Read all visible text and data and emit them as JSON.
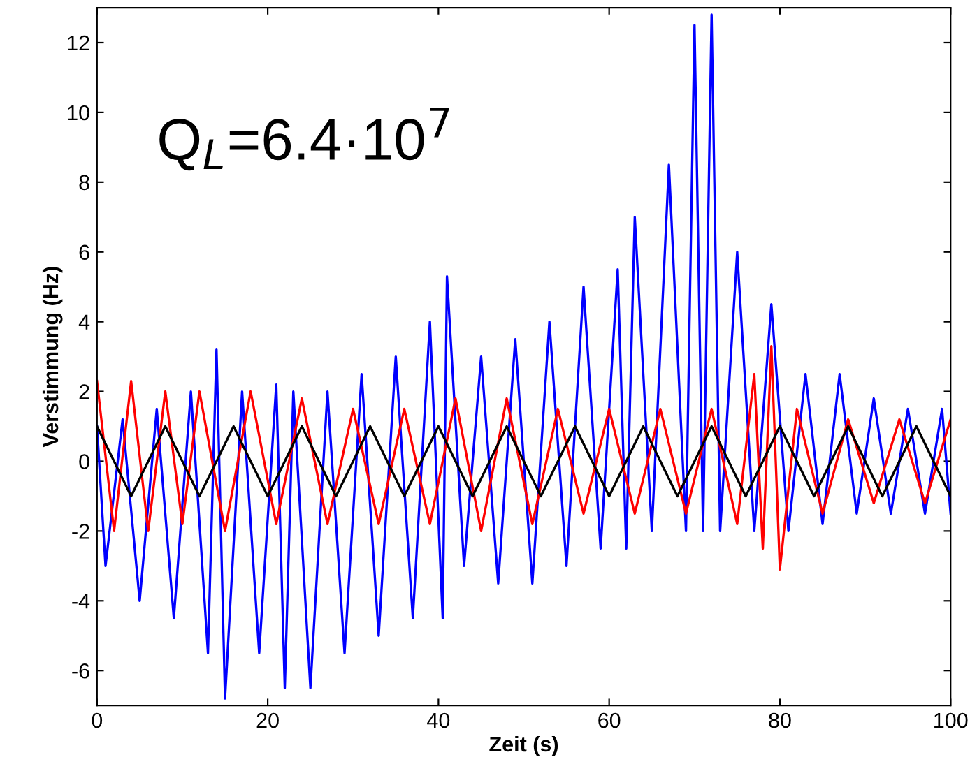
{
  "chart_data": {
    "type": "line",
    "xlabel": "Zeit (s)",
    "ylabel": "Verstimmung (Hz)",
    "annotations": [
      "Q$_{L}$=6.4·10$^{7}$"
    ],
    "xlim": [
      0,
      100
    ],
    "ylim": [
      -7,
      13
    ],
    "xticks": [
      0,
      20,
      40,
      60,
      80,
      100
    ],
    "yticks": [
      -6,
      -4,
      -2,
      0,
      2,
      4,
      6,
      8,
      10,
      12
    ],
    "grid": false,
    "legend": false,
    "marker": "none",
    "line_style": "solid",
    "series": [
      {
        "color": "#0000ff",
        "x": [
          0,
          1,
          3,
          5,
          7,
          9,
          11,
          13,
          14,
          15,
          17,
          19,
          21,
          22,
          23,
          25,
          27,
          29,
          31,
          33,
          35,
          37,
          39,
          40.5,
          41,
          43,
          45,
          47,
          49,
          51,
          53,
          55,
          57,
          59,
          61,
          62,
          63,
          65,
          67,
          69,
          70,
          71,
          72,
          73,
          75,
          77,
          79,
          81,
          83,
          85,
          87,
          89,
          91,
          93,
          95,
          97,
          99,
          100
        ],
        "values": [
          1,
          -3,
          1.2,
          -4,
          1.5,
          -4.5,
          2,
          -5.5,
          3.2,
          -6.8,
          2,
          -5.5,
          2.2,
          -6.5,
          2,
          -6.5,
          2,
          -5.5,
          2.5,
          -5,
          3,
          -4.5,
          4,
          -4.5,
          5.3,
          -3,
          3,
          -3.5,
          3.5,
          -3.5,
          4,
          -3,
          5,
          -2.5,
          5.5,
          -2.5,
          7,
          -2,
          8.5,
          -2,
          12.5,
          -2,
          12.8,
          -2,
          6,
          -2,
          4.5,
          -2,
          2.5,
          -1.8,
          2.5,
          -1.5,
          1.8,
          -1.5,
          1.5,
          -1.5,
          1.5,
          -1.5
        ]
      },
      {
        "color": "#ff0000",
        "x": [
          0,
          2,
          4,
          6,
          8,
          10,
          12,
          15,
          18,
          21,
          24,
          27,
          30,
          33,
          36,
          39,
          42,
          45,
          48,
          51,
          54,
          57,
          60,
          63,
          66,
          69,
          72,
          75,
          77,
          78,
          79,
          80,
          82,
          85,
          88,
          91,
          94,
          97,
          100
        ],
        "values": [
          2.3,
          -2,
          2.3,
          -2,
          2,
          -1.8,
          2,
          -2,
          2,
          -1.8,
          1.8,
          -1.8,
          1.5,
          -1.8,
          1.5,
          -1.8,
          1.8,
          -2,
          1.8,
          -1.8,
          1.5,
          -1.5,
          1.5,
          -1.5,
          1.5,
          -1.5,
          1.5,
          -1.8,
          2.5,
          -2.5,
          3.3,
          -3.1,
          1.5,
          -1.5,
          1.2,
          -1.2,
          1.2,
          -1.2,
          1.2
        ]
      },
      {
        "color": "#000000",
        "x": [
          0,
          4,
          8,
          12,
          16,
          20,
          24,
          28,
          32,
          36,
          40,
          44,
          48,
          52,
          56,
          60,
          64,
          68,
          72,
          76,
          80,
          84,
          88,
          92,
          96,
          100
        ],
        "values": [
          1,
          -1,
          1,
          -1,
          1,
          -1,
          1,
          -1,
          1,
          -1,
          1,
          -1,
          1,
          -1,
          1,
          -1,
          1,
          -1,
          1,
          -1,
          1,
          -1,
          1,
          -1,
          1,
          -1
        ]
      }
    ]
  }
}
